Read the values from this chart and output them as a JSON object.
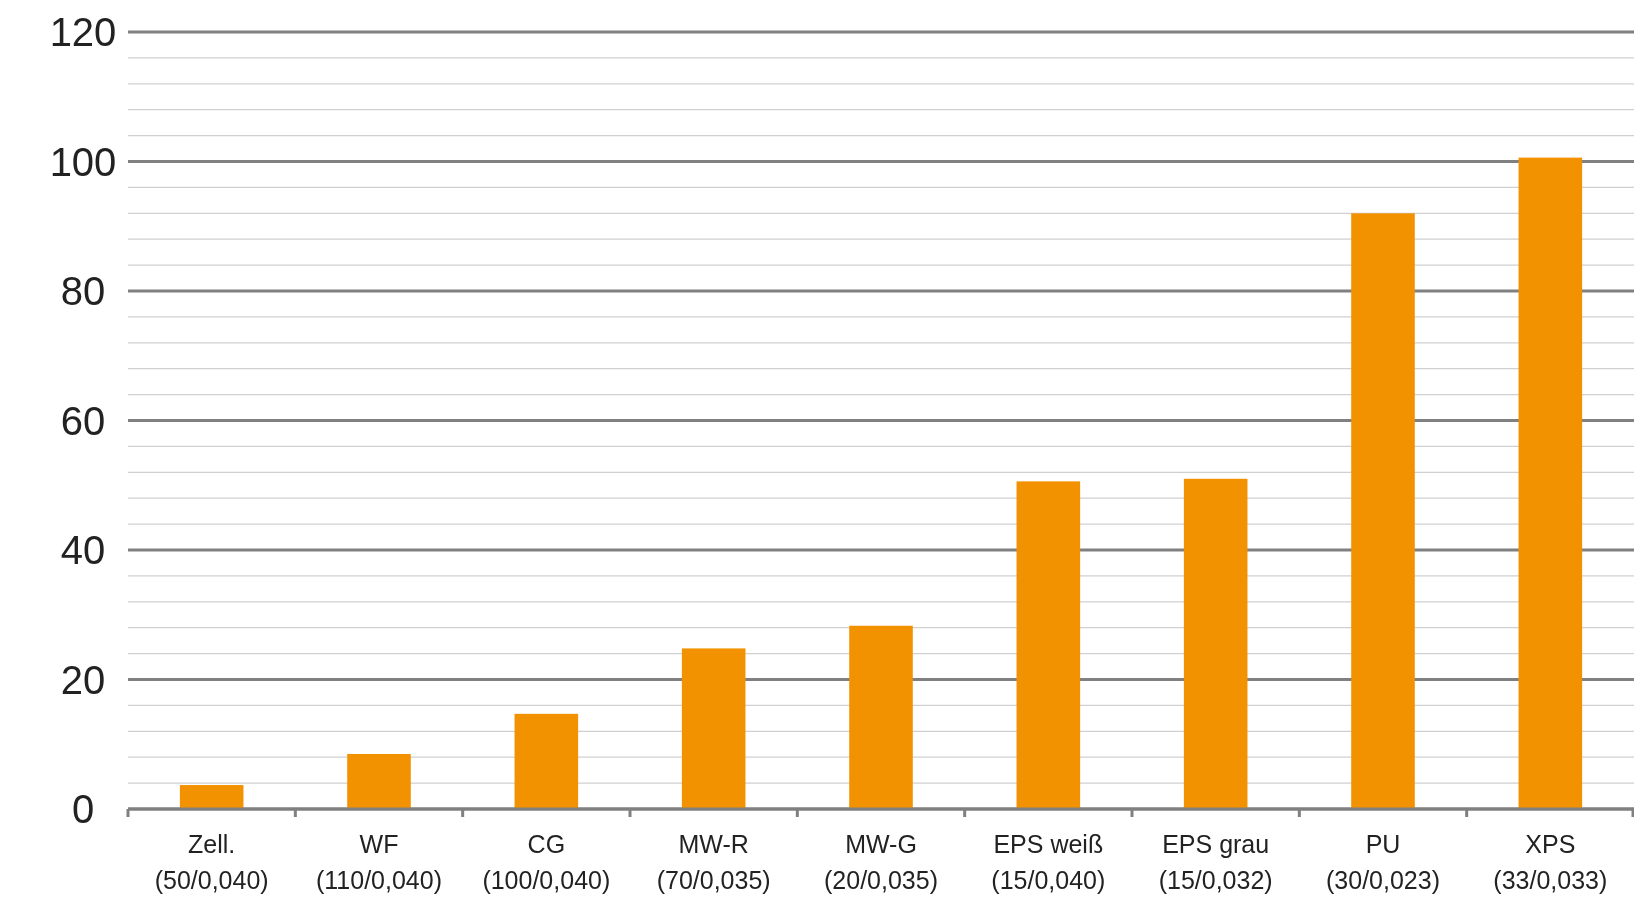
{
  "chart_data": {
    "type": "bar",
    "categories": [
      "Zell.\n(50/0,040)",
      "WF\n(110/0,040)",
      "CG\n(100/0,040)",
      "MW-R\n(70/0,035)",
      "MW-G\n(20/0,035)",
      "EPS weiß\n(15/0,040)",
      "EPS grau\n(15/0,032)",
      "PU\n(30/0,023)",
      "XPS\n(33/0,033)"
    ],
    "values": [
      3.7,
      8.5,
      14.7,
      24.8,
      28.3,
      50.6,
      51.0,
      92,
      100.6
    ],
    "color": "#f39200",
    "ylim": [
      0,
      120
    ],
    "yticks": [
      0,
      {
        "value": 4,
        "label": null
      },
      {
        "value": 8,
        "label": null
      },
      {
        "value": 12,
        "label": null
      },
      {
        "value": 16,
        "label": null
      },
      20,
      {
        "value": 24,
        "label": null
      },
      {
        "value": 28,
        "label": null
      },
      {
        "value": 32,
        "label": null
      },
      {
        "value": 36,
        "label": null
      },
      40,
      {
        "value": 44,
        "label": null
      },
      {
        "value": 48,
        "label": null
      },
      {
        "value": 52,
        "label": null
      },
      {
        "value": 56,
        "label": null
      },
      60,
      {
        "value": 64,
        "label": null
      },
      {
        "value": 68,
        "label": null
      },
      {
        "value": 72,
        "label": null
      },
      {
        "value": 76,
        "label": null
      },
      80,
      {
        "value": 84,
        "label": null
      },
      {
        "value": 88,
        "label": null
      },
      {
        "value": 92,
        "label": null
      },
      {
        "value": 96,
        "label": null
      },
      100,
      {
        "value": 104,
        "label": null
      },
      {
        "value": 108,
        "label": null
      },
      {
        "value": 112,
        "label": null
      },
      {
        "value": 116,
        "label": null
      },
      120
    ],
    "grid": true
  }
}
